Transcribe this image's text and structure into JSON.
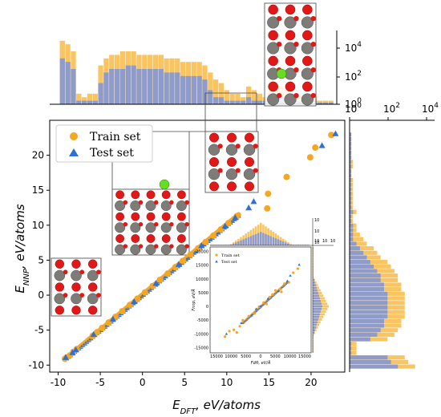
{
  "chart_data": {
    "type": "scatter",
    "title": "",
    "xlabel_main": "E",
    "xlabel_sub": "DFT",
    "xlabel_unit": ", eV/atoms",
    "ylabel_main": "E",
    "ylabel_sub": "NNP",
    "ylabel_unit": ", eV/atoms",
    "xlim": [
      -11,
      24
    ],
    "ylim": [
      -11,
      25
    ],
    "x_ticks": [
      -10,
      -5,
      0,
      5,
      10,
      15,
      20
    ],
    "y_ticks": [
      -10,
      -5,
      0,
      5,
      10,
      15,
      20
    ],
    "legend": {
      "placement": "top-left",
      "entries": [
        "Train set",
        "Test set"
      ]
    },
    "colors": {
      "train": "#f5a623",
      "test": "#2f6fd6",
      "hist_train": "#f9c562",
      "hist_test": "#8f9bc8"
    },
    "series": [
      {
        "name": "Train set",
        "marker": "circle",
        "points": [
          [
            -9.2,
            -9.1
          ],
          [
            -9.0,
            -8.9
          ],
          [
            -8.6,
            -8.6
          ],
          [
            -8.2,
            -8.1
          ],
          [
            -7.8,
            -7.7
          ],
          [
            -5.9,
            -5.8
          ],
          [
            -5.4,
            -5.3
          ],
          [
            -4.8,
            -4.7
          ],
          [
            -4.0,
            -3.9
          ],
          [
            -3.2,
            -3.1
          ],
          [
            -2.4,
            -2.3
          ],
          [
            -1.5,
            -1.4
          ],
          [
            -0.6,
            -0.5
          ],
          [
            0.3,
            0.4
          ],
          [
            1.2,
            1.3
          ],
          [
            2.1,
            2.2
          ],
          [
            3.0,
            3.1
          ],
          [
            3.9,
            4.0
          ],
          [
            4.8,
            4.9
          ],
          [
            5.7,
            5.8
          ],
          [
            6.6,
            6.7
          ],
          [
            7.5,
            7.6
          ],
          [
            8.4,
            8.5
          ],
          [
            9.3,
            9.4
          ],
          [
            10.2,
            10.3
          ],
          [
            11.2,
            11.3
          ],
          [
            14.8,
            12.4
          ],
          [
            14.9,
            14.5
          ],
          [
            17.1,
            16.9
          ],
          [
            19.9,
            19.7
          ],
          [
            20.5,
            21.1
          ],
          [
            22.4,
            22.9
          ]
        ]
      },
      {
        "name": "Test set",
        "marker": "triangle",
        "points": [
          [
            -9.1,
            -8.9
          ],
          [
            -8.3,
            -8.2
          ],
          [
            -7.9,
            -7.8
          ],
          [
            -5.8,
            -5.6
          ],
          [
            -3.5,
            -3.4
          ],
          [
            -1.0,
            -0.9
          ],
          [
            1.6,
            1.7
          ],
          [
            4.3,
            4.4
          ],
          [
            7.0,
            7.1
          ],
          [
            9.8,
            9.9
          ],
          [
            11.0,
            11.1
          ],
          [
            12.6,
            12.5
          ],
          [
            13.2,
            13.4
          ],
          [
            21.3,
            21.4
          ],
          [
            22.9,
            23.1
          ]
        ]
      }
    ],
    "dense_band": {
      "x_start": -9.0,
      "x_end": 11.5,
      "note_series": "Train set"
    },
    "top_histogram": {
      "scale": "log",
      "ticks": [
        "10",
        "10"
      ],
      "tick_exponents": [
        "4",
        "2"
      ],
      "baseline_tick": "10",
      "baseline_exponent": "0",
      "bins_x_start": -9.8,
      "bin_width": 0.65,
      "train_log": [
        1.8,
        1.7,
        1.5,
        0.3,
        0.2,
        0.3,
        0.3,
        1.1,
        1.3,
        1.4,
        1.4,
        1.5,
        1.5,
        1.5,
        1.4,
        1.4,
        1.4,
        1.4,
        1.4,
        1.3,
        1.3,
        1.3,
        1.2,
        1.2,
        1.2,
        1.2,
        1.1,
        0.9,
        0.7,
        0.6,
        0.4,
        0.3,
        0.3,
        0.2,
        0.5,
        0.4,
        0.3,
        0.2,
        0.7,
        0.6,
        0.5,
        0.4,
        0.3,
        0.3,
        0.2,
        0.2,
        0.2,
        0.1,
        0.1,
        0.1
      ],
      "test_log": [
        1.3,
        1.2,
        1.0,
        0.1,
        0.1,
        0.1,
        0.1,
        0.6,
        0.9,
        1.0,
        1.0,
        1.0,
        1.1,
        1.1,
        1.0,
        1.0,
        1.0,
        1.0,
        1.0,
        0.9,
        0.9,
        0.9,
        0.8,
        0.8,
        0.8,
        0.8,
        0.7,
        0.4,
        0.2,
        0.2,
        0.1,
        0.1,
        0.1,
        0.1,
        0.2,
        0.1,
        0.1,
        0.1,
        0.3,
        0.2,
        0.2,
        0.1,
        0.1,
        0.1,
        0.1,
        0.1,
        0.1,
        0.05,
        0.05,
        0.05
      ]
    },
    "right_histogram": {
      "scale": "log",
      "ticks": [
        "10",
        "10",
        "10"
      ],
      "tick_exponents": [
        "0",
        "2",
        "4"
      ],
      "bins_y_start": -10.5,
      "bin_width": 0.65,
      "train_log": [
        1.9,
        1.7,
        1.6,
        0.2,
        0.2,
        0.2,
        1.1,
        1.3,
        1.4,
        1.5,
        1.5,
        1.6,
        1.6,
        1.6,
        1.6,
        1.6,
        1.6,
        1.5,
        1.5,
        1.4,
        1.4,
        1.3,
        1.2,
        1.1,
        0.9,
        0.8,
        0.7,
        0.5,
        0.4,
        0.3,
        0.2,
        0.2,
        0.1,
        0.1,
        0.2,
        0.1,
        0.1,
        0.1,
        0.1,
        0.1,
        0.1,
        0.1,
        0.05,
        0.05,
        0.1,
        0.1,
        0.05,
        0.05,
        0.05,
        0.05,
        0.05,
        0.05
      ],
      "test_log": [
        1.4,
        1.2,
        1.1,
        0.05,
        0.05,
        0.05,
        0.6,
        0.8,
        0.9,
        1.0,
        1.0,
        1.1,
        1.1,
        1.1,
        1.1,
        1.1,
        1.1,
        1.0,
        1.0,
        0.9,
        0.9,
        0.8,
        0.7,
        0.6,
        0.5,
        0.4,
        0.3,
        0.2,
        0.1,
        0.1,
        0.1,
        0.1,
        0.05,
        0.05,
        0.1,
        0.05,
        0.05,
        0.05,
        0.05,
        0.05,
        0.05,
        0.05,
        0.05,
        0.05,
        0.05,
        0.05,
        0.05,
        0.05,
        0.05,
        0.05,
        0.05,
        0.05
      ]
    },
    "inset": {
      "xlabel_main": "F",
      "xlabel_sub": "DFT",
      "xlabel_unit": ", eV/Å",
      "ylabel_main": "F",
      "ylabel_sub": "NNP",
      "ylabel_unit": ", eV/Å",
      "x_ticks": [
        "15000",
        "10000",
        "5000",
        "0",
        "5000",
        "10000",
        "15000"
      ],
      "y_ticks": [
        "20000",
        "15000",
        "10000",
        "5000",
        "0",
        "-5000",
        "-10000",
        "-15000"
      ],
      "top_hist_ticks": [
        "10",
        "10",
        "10"
      ],
      "right_hist_ticks": [
        "10",
        "10",
        "10"
      ],
      "legend": [
        "Train set",
        "Test set"
      ],
      "points_train": [
        [
          -12000,
          -11000
        ],
        [
          -10500,
          -9000
        ],
        [
          -9000,
          -8500
        ],
        [
          -7000,
          -7200
        ],
        [
          -6000,
          -5000
        ],
        [
          -4000,
          -3500
        ],
        [
          -2000,
          -2500
        ],
        [
          -500,
          0
        ],
        [
          1000,
          1500
        ],
        [
          3000,
          3500
        ],
        [
          4000,
          4500
        ],
        [
          5000,
          6000
        ],
        [
          6500,
          6500
        ],
        [
          8000,
          8500
        ],
        [
          9500,
          9000
        ],
        [
          11000,
          12500
        ],
        [
          12500,
          14000
        ],
        [
          -8000,
          -9500
        ],
        [
          2000,
          1000
        ],
        [
          7000,
          5500
        ]
      ],
      "points_test": [
        [
          -11500,
          -10000
        ],
        [
          -6500,
          -6000
        ],
        [
          -3000,
          -3200
        ],
        [
          0,
          200
        ],
        [
          2500,
          3000
        ],
        [
          6000,
          5800
        ],
        [
          9000,
          9500
        ],
        [
          13000,
          15500
        ],
        [
          10000,
          11500
        ],
        [
          -1500,
          -800
        ]
      ]
    },
    "structure_insets": [
      {
        "label": "",
        "count": 4
      }
    ]
  }
}
